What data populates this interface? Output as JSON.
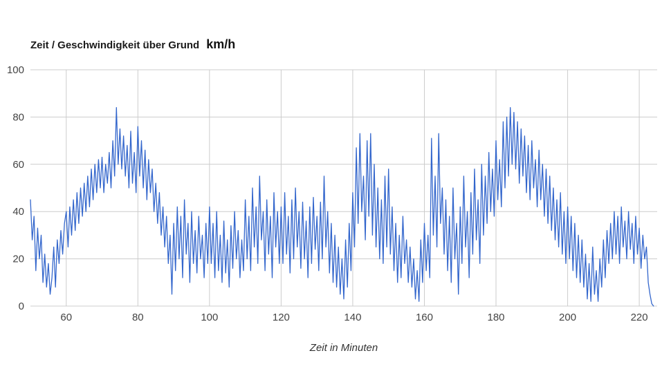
{
  "chart_data": {
    "type": "line",
    "title": "Zeit / Geschwindigkeit über Grund",
    "unit_label": "km/h",
    "xlabel": "Zeit in Minuten",
    "ylabel": "",
    "xlim": [
      50,
      225
    ],
    "ylim": [
      0,
      100
    ],
    "x_ticks": [
      60,
      80,
      100,
      120,
      140,
      160,
      180,
      200,
      220
    ],
    "y_ticks": [
      0,
      20,
      40,
      60,
      80,
      100
    ],
    "grid": "on",
    "legend": "none",
    "colors": {
      "line": "#3366cc",
      "grid": "#cccccc",
      "tick": "#444444",
      "title": "#1a1a1a",
      "background": "#ffffff"
    },
    "series": [
      {
        "name": "Geschwindigkeit über Grund (km/h)",
        "x_start": 50,
        "x_step": 0.5,
        "values": [
          45,
          28,
          38,
          15,
          33,
          20,
          30,
          10,
          22,
          8,
          18,
          5,
          12,
          25,
          8,
          28,
          18,
          32,
          22,
          35,
          40,
          25,
          42,
          30,
          45,
          32,
          48,
          35,
          50,
          38,
          52,
          40,
          55,
          42,
          58,
          45,
          60,
          48,
          62,
          50,
          63,
          48,
          60,
          52,
          65,
          50,
          70,
          55,
          84,
          60,
          75,
          58,
          72,
          55,
          68,
          50,
          74,
          52,
          65,
          48,
          76,
          55,
          70,
          50,
          66,
          45,
          62,
          48,
          58,
          40,
          52,
          35,
          48,
          30,
          42,
          25,
          38,
          18,
          30,
          5,
          35,
          15,
          42,
          20,
          38,
          12,
          45,
          22,
          35,
          10,
          40,
          18,
          32,
          14,
          38,
          20,
          30,
          12,
          35,
          18,
          42,
          18,
          35,
          12,
          40,
          15,
          30,
          10,
          36,
          14,
          28,
          8,
          34,
          16,
          40,
          20,
          32,
          12,
          28,
          15,
          45,
          20,
          38,
          15,
          50,
          25,
          42,
          18,
          55,
          28,
          40,
          15,
          45,
          22,
          38,
          12,
          48,
          25,
          40,
          18,
          42,
          18,
          48,
          22,
          38,
          14,
          45,
          20,
          50,
          25,
          40,
          16,
          44,
          20,
          36,
          12,
          42,
          18,
          46,
          24,
          38,
          15,
          44,
          20,
          55,
          25,
          40,
          14,
          35,
          10,
          30,
          8,
          25,
          5,
          20,
          3,
          28,
          8,
          35,
          15,
          48,
          25,
          67,
          35,
          73,
          40,
          55,
          28,
          70,
          38,
          73,
          30,
          60,
          25,
          50,
          20,
          45,
          18,
          55,
          25,
          58,
          22,
          42,
          15,
          35,
          10,
          30,
          12,
          38,
          18,
          28,
          10,
          25,
          8,
          20,
          3,
          15,
          2,
          28,
          10,
          35,
          15,
          30,
          12,
          71,
          30,
          55,
          25,
          73,
          35,
          50,
          22,
          45,
          15,
          38,
          10,
          50,
          20,
          35,
          5,
          42,
          18,
          55,
          25,
          40,
          12,
          48,
          22,
          58,
          28,
          45,
          18,
          60,
          30,
          55,
          35,
          65,
          40,
          58,
          38,
          70,
          45,
          62,
          42,
          78,
          50,
          80,
          55,
          84,
          60,
          82,
          58,
          78,
          52,
          75,
          55,
          72,
          48,
          68,
          45,
          70,
          50,
          62,
          42,
          66,
          45,
          60,
          38,
          58,
          35,
          55,
          32,
          50,
          28,
          45,
          25,
          48,
          22,
          40,
          18,
          42,
          20,
          38,
          15,
          35,
          12,
          30,
          10,
          28,
          8,
          22,
          3,
          18,
          2,
          25,
          5,
          15,
          2,
          20,
          8,
          28,
          12,
          32,
          18,
          35,
          20,
          40,
          22,
          38,
          18,
          42,
          25,
          36,
          20,
          40,
          24,
          35,
          18,
          38,
          22,
          33,
          16,
          30,
          20,
          25,
          10,
          5,
          1,
          0
        ]
      }
    ]
  }
}
